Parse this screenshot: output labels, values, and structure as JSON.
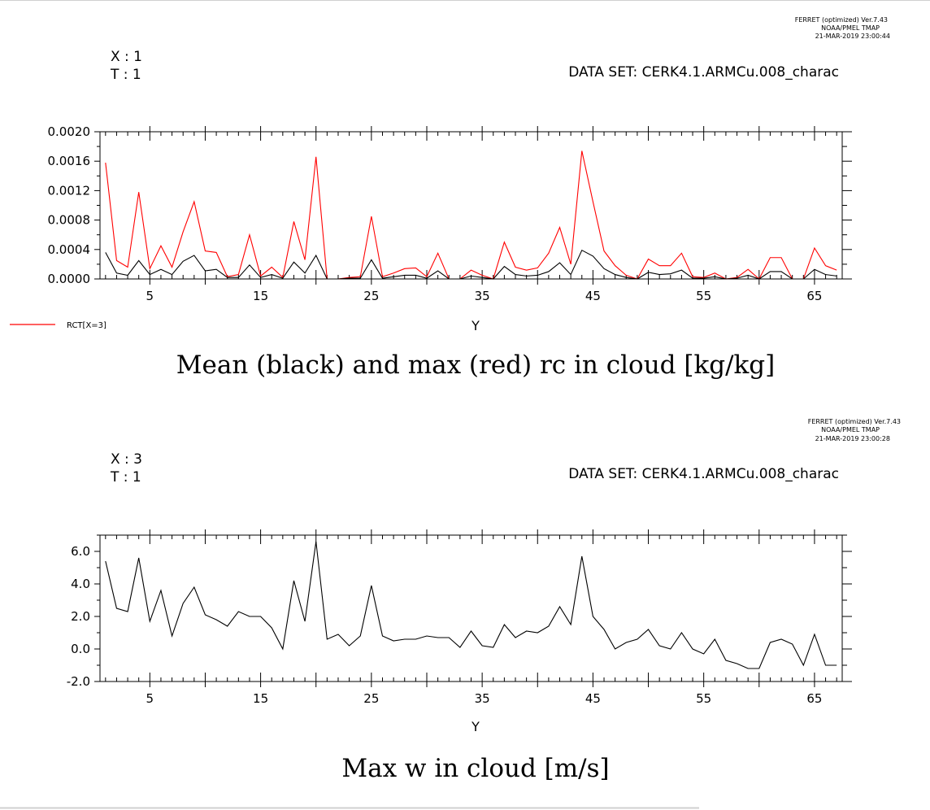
{
  "panels": [
    {
      "ferret_line1": "FERRET (optimized) Ver.7.43",
      "ferret_line2": "NOAA/PMEL TMAP",
      "ferret_line3": "21-MAR-2019 23:00:44",
      "x_info": "X : 1",
      "t_info": "T : 1",
      "dataset": "DATA SET: CERK4.1.ARMCu.008_charac",
      "legend_label": "RCT[X=3]",
      "title": "Mean (black) and max (red) rc in cloud [kg/kg]",
      "ytick_labels": [
        "0.0000",
        "0.0004",
        "0.0008",
        "0.0012",
        "0.0016",
        "0.0020"
      ],
      "xtick_labels": [
        "5",
        "15",
        "25",
        "35",
        "45",
        "55",
        "65"
      ],
      "xlabel": "Y"
    },
    {
      "ferret_line1": "FERRET (optimized) Ver.7.43",
      "ferret_line2": "NOAA/PMEL TMAP",
      "ferret_line3": "21-MAR-2019 23:00:28",
      "x_info": "X : 3",
      "t_info": "T : 1",
      "dataset": "DATA SET: CERK4.1.ARMCu.008_charac",
      "title": "Max w in cloud [m/s]",
      "ytick_labels": [
        "-2.0",
        "0.0",
        "2.0",
        "4.0",
        "6.0"
      ],
      "xtick_labels": [
        "5",
        "15",
        "25",
        "35",
        "45",
        "55",
        "65"
      ],
      "xlabel": "Y"
    }
  ],
  "chart_data": [
    {
      "type": "line",
      "title": "Mean (black) and max (red) rc in cloud [kg/kg]",
      "xlabel": "Y",
      "ylabel": "",
      "xlim": [
        0.5,
        67.5
      ],
      "ylim": [
        0,
        0.002
      ],
      "y_ticks": [
        0,
        0.0004,
        0.0008,
        0.0012,
        0.0016,
        0.002
      ],
      "y_minor_step": 0.0002,
      "x_labeled_ticks": [
        5,
        15,
        25,
        35,
        45,
        55,
        65
      ],
      "x_major_step": 5,
      "x_minor_step": 1,
      "legend_position": "bottom-left",
      "x": [
        1,
        2,
        3,
        4,
        5,
        6,
        7,
        8,
        9,
        10,
        11,
        12,
        13,
        14,
        15,
        16,
        17,
        18,
        19,
        20,
        21,
        22,
        23,
        24,
        25,
        26,
        27,
        28,
        29,
        30,
        31,
        32,
        33,
        34,
        35,
        36,
        37,
        38,
        39,
        40,
        41,
        42,
        43,
        44,
        45,
        46,
        47,
        48,
        49,
        50,
        51,
        52,
        53,
        54,
        55,
        56,
        57,
        58,
        59,
        60,
        61,
        62,
        63,
        64,
        65,
        66,
        67
      ],
      "series": [
        {
          "name": "RCT[X=3]",
          "color": "#ff0000",
          "values": [
            0.00158,
            0.00025,
            0.00016,
            0.00118,
            0.00014,
            0.00045,
            0.00016,
            0.00064,
            0.00105,
            0.00038,
            0.00036,
            3e-05,
            6e-05,
            0.0006,
            4e-05,
            0.00016,
            2e-05,
            0.00078,
            0.00026,
            0.00166,
            0.0,
            0.0,
            2e-05,
            3e-05,
            0.00085,
            3e-05,
            8e-05,
            0.00014,
            0.00015,
            3e-05,
            0.00035,
            0.0,
            0.0,
            0.00012,
            5e-05,
            0.0,
            0.0005,
            0.00016,
            0.00012,
            0.00015,
            0.00035,
            0.0007,
            0.0002,
            0.00174,
            0.00105,
            0.00038,
            0.00018,
            5e-05,
            0.0,
            0.00027,
            0.00018,
            0.00018,
            0.00035,
            3e-05,
            2e-05,
            8e-05,
            0.0,
            2e-05,
            0.00013,
            0.0,
            0.00029,
            0.00029,
            0.0,
            0.0,
            0.00042,
            0.00018,
            0.00012
          ]
        },
        {
          "color": "#000000",
          "values": [
            0.00036,
            8e-05,
            5e-05,
            0.00025,
            6e-05,
            0.00013,
            6e-05,
            0.00024,
            0.00032,
            0.00011,
            0.00013,
            2e-05,
            2e-05,
            0.00019,
            2e-05,
            6e-05,
            1e-05,
            0.00023,
            8e-05,
            0.00032,
            0.0,
            0.0,
            1e-05,
            1e-05,
            0.00026,
            1e-05,
            3e-05,
            5e-05,
            5e-05,
            1e-05,
            0.00011,
            0.0,
            0.0,
            4e-05,
            2e-05,
            0.0,
            0.00017,
            6e-05,
            4e-05,
            5e-05,
            0.0001,
            0.00022,
            6e-05,
            0.00039,
            0.00031,
            0.00014,
            6e-05,
            2e-05,
            0.0,
            9e-05,
            6e-05,
            7e-05,
            0.00012,
            1e-05,
            1e-05,
            3e-05,
            0.0,
            1e-05,
            5e-05,
            0.0,
            0.0001,
            0.0001,
            0.0,
            0.0,
            0.00013,
            6e-05,
            4e-05
          ]
        }
      ]
    },
    {
      "type": "line",
      "title": "Max w in cloud [m/s]",
      "xlabel": "Y",
      "ylabel": "",
      "xlim": [
        0.5,
        67.5
      ],
      "ylim": [
        -2.0,
        7.0
      ],
      "y_ticks": [
        -2.0,
        0.0,
        2.0,
        4.0,
        6.0
      ],
      "y_minor_step": 1.0,
      "x_labeled_ticks": [
        5,
        15,
        25,
        35,
        45,
        55,
        65
      ],
      "x_major_step": 5,
      "x_minor_step": 1,
      "x": [
        1,
        2,
        3,
        4,
        5,
        6,
        7,
        8,
        9,
        10,
        11,
        12,
        13,
        14,
        15,
        16,
        17,
        18,
        19,
        20,
        21,
        22,
        23,
        24,
        25,
        26,
        27,
        28,
        29,
        30,
        31,
        32,
        33,
        34,
        35,
        36,
        37,
        38,
        39,
        40,
        41,
        42,
        43,
        44,
        45,
        46,
        47,
        48,
        49,
        50,
        51,
        52,
        53,
        54,
        55,
        56,
        57,
        58,
        59,
        60,
        61,
        62,
        63,
        64,
        65,
        66,
        67
      ],
      "series": [
        {
          "color": "#000000",
          "values": [
            5.4,
            2.5,
            2.3,
            5.6,
            1.7,
            3.6,
            0.8,
            2.8,
            3.8,
            2.1,
            1.8,
            1.4,
            2.3,
            2.0,
            2.0,
            1.3,
            0.0,
            4.2,
            1.7,
            6.6,
            0.6,
            0.9,
            0.2,
            0.8,
            3.9,
            0.8,
            0.5,
            0.6,
            0.6,
            0.8,
            0.7,
            0.7,
            0.1,
            1.1,
            0.2,
            0.1,
            1.5,
            0.7,
            1.1,
            1.0,
            1.4,
            2.6,
            1.5,
            5.7,
            2.0,
            1.2,
            0.0,
            0.4,
            0.6,
            1.2,
            0.2,
            0.0,
            1.0,
            0.0,
            -0.3,
            0.6,
            -0.7,
            -0.9,
            -1.2,
            -1.2,
            0.4,
            0.6,
            0.3,
            -1.0,
            0.9,
            -1.0,
            -1.0
          ]
        }
      ]
    }
  ]
}
